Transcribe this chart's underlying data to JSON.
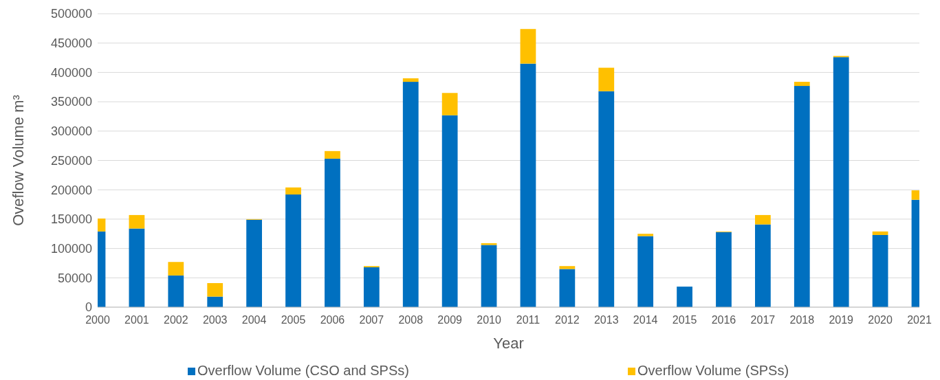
{
  "chart_data": {
    "type": "bar",
    "stacked": true,
    "xlabel": "Year",
    "ylabel": "Oveflow  Volume m³",
    "x": [
      2000,
      2001,
      2002,
      2003,
      2004,
      2005,
      2006,
      2007,
      2008,
      2009,
      2010,
      2011,
      2012,
      2013,
      2014,
      2015,
      2016,
      2017,
      2018,
      2019,
      2020,
      2021
    ],
    "xlim": [
      2000,
      2021
    ],
    "xticks": [
      2000,
      2001,
      2002,
      2003,
      2004,
      2005,
      2006,
      2007,
      2008,
      2009,
      2010,
      2011,
      2012,
      2013,
      2014,
      2015,
      2016,
      2017,
      2018,
      2019,
      2020,
      2021
    ],
    "ylim": [
      0,
      500000
    ],
    "yticks": [
      0,
      50000,
      100000,
      150000,
      200000,
      250000,
      300000,
      350000,
      400000,
      450000,
      500000
    ],
    "grid": "y",
    "legend": "bottom",
    "series": [
      {
        "name": "Overflow Volume (CSO and SPSs)",
        "color": "#0070c0",
        "values": [
          129000,
          134000,
          54000,
          18000,
          149000,
          192000,
          253000,
          68000,
          384000,
          327000,
          106000,
          415000,
          65000,
          368000,
          121000,
          35000,
          128000,
          141000,
          377000,
          426000,
          123000,
          183000
        ]
      },
      {
        "name": "Overflow Volume (SPSs)",
        "color": "#ffc000",
        "values": [
          22000,
          23000,
          23000,
          23000,
          1000,
          12000,
          13000,
          2000,
          6000,
          38000,
          3000,
          59000,
          5000,
          40000,
          4000,
          0,
          1000,
          16000,
          7000,
          2000,
          6000,
          16000
        ]
      }
    ]
  }
}
